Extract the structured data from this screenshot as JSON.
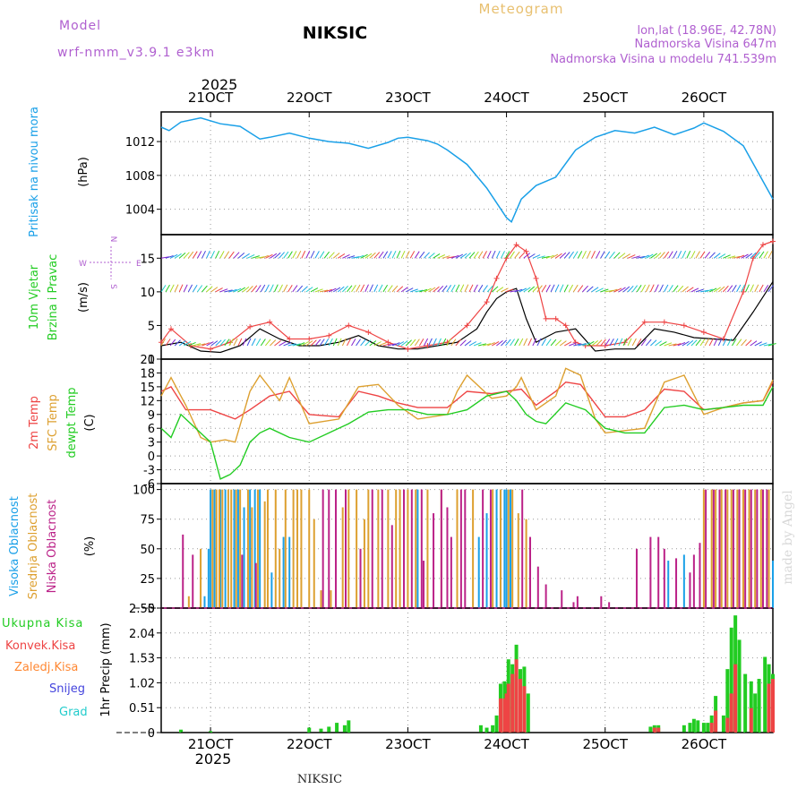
{
  "header": {
    "app_title": "Meteogram",
    "station": "NIKSIC",
    "model_label": "Model",
    "model_name": "wrf-nmm_v3.9.1  e3km",
    "lonlat": "lon,lat (18.96E, 42.78N)",
    "altitude": "Nadmorska Visina 647m",
    "model_altitude": "Nadmorska Visina u modelu 741.539m",
    "year": "2025",
    "footer_station": "NIKSIC",
    "watermark": "made by Angel"
  },
  "colors": {
    "pressure": "#1aa0e8",
    "wind": "#22cc22",
    "temp2m": "#ee4444",
    "sfc": "#dda030",
    "dew": "#22cc22",
    "high": "#1aa0e8",
    "mid": "#dda030",
    "low": "#bb2288",
    "total": "#22cc22",
    "conv": "#ee4444",
    "frz": "#ff8833",
    "snow": "#4444dd",
    "grad": "#22cccc",
    "compass": "#b060d0"
  },
  "chart_data": [
    {
      "id": "pressure",
      "type": "line",
      "ylabel_title": "Pritisak na nivou mora",
      "ylabel_unit": "(hPa)",
      "ylim": [
        1001,
        1015.5
      ],
      "yticks": [
        1004,
        1008,
        1012
      ],
      "x_day_start": 20.5,
      "x_day_end": 26.7,
      "xticks": [
        "21OCT",
        "22OCT",
        "23OCT",
        "24OCT",
        "25OCT",
        "26OCT"
      ],
      "series": [
        {
          "name": "MSLP",
          "x": [
            20.5,
            20.58,
            20.7,
            20.9,
            21.1,
            21.3,
            21.5,
            21.6,
            21.8,
            22.0,
            22.2,
            22.4,
            22.6,
            22.8,
            22.9,
            23.0,
            23.2,
            23.3,
            23.4,
            23.6,
            23.8,
            24.0,
            24.05,
            24.15,
            24.3,
            24.5,
            24.7,
            24.9,
            25.1,
            25.3,
            25.5,
            25.7,
            25.9,
            26.0,
            26.2,
            26.4,
            26.7
          ],
          "values": [
            1013.7,
            1013.3,
            1014.3,
            1014.8,
            1014.1,
            1013.8,
            1012.3,
            1012.5,
            1013.0,
            1012.4,
            1012.0,
            1011.8,
            1011.2,
            1011.9,
            1012.4,
            1012.5,
            1012.1,
            1011.7,
            1011.0,
            1009.3,
            1006.5,
            1003.0,
            1002.5,
            1005.2,
            1006.8,
            1007.8,
            1011.0,
            1012.5,
            1013.3,
            1013.0,
            1013.7,
            1012.8,
            1013.6,
            1014.2,
            1013.2,
            1011.5,
            1005.2
          ]
        }
      ]
    },
    {
      "id": "wind",
      "type": "line",
      "ylabel_title": "10m Vjetar",
      "ylabel_sub": "Brzina i Pravac",
      "ylabel_unit": "(m/s)",
      "ylim": [
        0,
        18.5
      ],
      "yticks": [
        0,
        5,
        10,
        15
      ],
      "compass": {
        "north": "N",
        "south": "S",
        "east": "E",
        "west": "W"
      },
      "series": [
        {
          "name": "Brzina",
          "x": [
            20.5,
            20.7,
            20.9,
            21.1,
            21.3,
            21.5,
            21.7,
            21.9,
            22.1,
            22.3,
            22.5,
            22.7,
            22.9,
            23.1,
            23.3,
            23.5,
            23.7,
            23.8,
            23.9,
            24.0,
            24.1,
            24.2,
            24.3,
            24.5,
            24.7,
            24.9,
            25.1,
            25.3,
            25.5,
            25.7,
            25.9,
            26.1,
            26.3,
            26.5,
            26.7
          ],
          "values": [
            2.0,
            2.5,
            1.2,
            1.0,
            2.0,
            4.5,
            3.0,
            2.0,
            2.0,
            2.5,
            3.5,
            2.0,
            1.5,
            1.5,
            2.0,
            2.5,
            4.5,
            7.0,
            9.0,
            10.0,
            10.5,
            6.0,
            2.5,
            4.0,
            4.5,
            1.2,
            1.5,
            1.5,
            4.5,
            4.0,
            3.2,
            3.0,
            2.8,
            7.0,
            11.5
          ]
        },
        {
          "name": "Udari",
          "x": [
            20.5,
            20.6,
            20.8,
            21.0,
            21.2,
            21.4,
            21.6,
            21.8,
            22.0,
            22.2,
            22.4,
            22.6,
            22.8,
            23.0,
            23.2,
            23.4,
            23.6,
            23.8,
            23.9,
            24.0,
            24.1,
            24.2,
            24.3,
            24.4,
            24.5,
            24.6,
            24.7,
            24.8,
            25.0,
            25.2,
            25.4,
            25.6,
            25.8,
            26.0,
            26.2,
            26.4,
            26.5,
            26.6,
            26.7
          ],
          "values": [
            2.5,
            4.5,
            2.0,
            1.5,
            2.5,
            4.8,
            5.5,
            3.0,
            3.0,
            3.5,
            5.0,
            4.0,
            2.5,
            1.5,
            2.0,
            2.5,
            5.0,
            8.5,
            12.0,
            15.0,
            17.0,
            16.0,
            12.0,
            6.0,
            6.0,
            5.0,
            2.5,
            2.0,
            2.0,
            2.5,
            5.5,
            5.5,
            5.0,
            4.0,
            3.0,
            10.0,
            15.0,
            17.0,
            17.5
          ]
        }
      ]
    },
    {
      "id": "temperature",
      "type": "line",
      "ylabel_title": "2m Temp",
      "ylabel_sub": "SFC Temp",
      "ylabel_sub2": "dewpt Temp",
      "ylabel_unit": "(C)",
      "ylim": [
        -6,
        21
      ],
      "yticks": [
        -6,
        -3,
        0,
        3,
        6,
        9,
        12,
        15,
        18,
        21
      ],
      "series": [
        {
          "name": "2m Temp",
          "x": [
            20.5,
            20.6,
            20.75,
            21.0,
            21.25,
            21.4,
            21.6,
            21.8,
            22.0,
            22.3,
            22.5,
            22.7,
            22.9,
            23.1,
            23.4,
            23.6,
            23.85,
            24.0,
            24.15,
            24.3,
            24.5,
            24.6,
            24.75,
            25.0,
            25.2,
            25.4,
            25.6,
            25.8,
            26.0,
            26.2,
            26.4,
            26.6,
            26.7
          ],
          "values": [
            14.0,
            15.0,
            10.0,
            10.0,
            8.0,
            10.0,
            13.0,
            14.0,
            9.0,
            8.5,
            14.0,
            13.0,
            11.5,
            10.5,
            10.5,
            14.0,
            13.5,
            14.0,
            14.5,
            11.0,
            14.0,
            16.0,
            15.5,
            8.5,
            8.5,
            10.0,
            14.5,
            14.0,
            10.0,
            10.5,
            11.5,
            12.0,
            16.0
          ]
        },
        {
          "name": "SFC Temp",
          "x": [
            20.5,
            20.6,
            20.75,
            20.9,
            21.0,
            21.15,
            21.25,
            21.4,
            21.5,
            21.7,
            21.8,
            22.0,
            22.3,
            22.5,
            22.7,
            22.9,
            23.1,
            23.4,
            23.5,
            23.6,
            23.85,
            24.0,
            24.1,
            24.15,
            24.3,
            24.5,
            24.6,
            24.75,
            24.9,
            25.0,
            25.2,
            25.4,
            25.6,
            25.8,
            26.0,
            26.2,
            26.4,
            26.6,
            26.7
          ],
          "values": [
            13.0,
            17.0,
            11.0,
            4.0,
            3.0,
            3.5,
            3.0,
            14.0,
            17.5,
            12.0,
            17.0,
            7.0,
            8.0,
            15.0,
            15.5,
            11.0,
            8.0,
            9.0,
            14.0,
            17.5,
            12.5,
            13.0,
            15.0,
            17.0,
            10.0,
            13.0,
            19.0,
            17.5,
            8.0,
            5.0,
            5.5,
            6.0,
            16.0,
            17.5,
            9.0,
            10.5,
            11.5,
            12.0,
            16.5
          ]
        },
        {
          "name": "dewpt Temp",
          "x": [
            20.5,
            20.6,
            20.7,
            20.8,
            21.0,
            21.1,
            21.2,
            21.3,
            21.4,
            21.5,
            21.6,
            21.8,
            22.0,
            22.2,
            22.4,
            22.6,
            22.8,
            23.0,
            23.2,
            23.4,
            23.6,
            23.8,
            24.0,
            24.1,
            24.2,
            24.3,
            24.4,
            24.6,
            24.8,
            25.0,
            25.2,
            25.4,
            25.6,
            25.8,
            26.0,
            26.2,
            26.4,
            26.6,
            26.7
          ],
          "values": [
            6.0,
            4.0,
            9.0,
            7.0,
            3.0,
            -5.0,
            -4.0,
            -2.0,
            3.0,
            5.0,
            6.0,
            4.0,
            3.0,
            5.0,
            7.0,
            9.5,
            10.0,
            10.0,
            9.0,
            9.0,
            10.0,
            13.0,
            14.0,
            12.0,
            9.0,
            7.5,
            7.0,
            11.5,
            10.0,
            6.0,
            5.0,
            5.0,
            10.5,
            11.0,
            10.0,
            10.5,
            11.0,
            11.0,
            15.0
          ]
        }
      ]
    },
    {
      "id": "clouds",
      "type": "bar",
      "ylabel_title": "Visoka Oblacnost",
      "ylabel_sub": "Srednja Oblacnost",
      "ylabel_sub2": "Niska  Oblacnost",
      "ylabel_unit": "(%)",
      "ylim": [
        0,
        105
      ],
      "yticks": [
        0,
        25,
        50,
        75,
        100
      ],
      "series": [
        {
          "name": "Visoka",
          "x": [
            20.94,
            20.98,
            21.0,
            21.04,
            21.1,
            21.15,
            21.24,
            21.28,
            21.34,
            21.4,
            21.45,
            21.5,
            21.62,
            21.74,
            21.8,
            23.1,
            23.72,
            23.8,
            23.9,
            23.94,
            23.98,
            24.0,
            24.04,
            25.64,
            25.8,
            26.7
          ],
          "values": [
            10,
            50,
            100,
            100,
            100,
            100,
            100,
            100,
            85,
            100,
            100,
            100,
            30,
            60,
            60,
            100,
            60,
            80,
            100,
            100,
            100,
            100,
            100,
            40,
            45,
            40
          ]
        },
        {
          "name": "Srednja",
          "x": [
            20.78,
            20.9,
            21.02,
            21.06,
            21.09,
            21.12,
            21.18,
            21.21,
            21.26,
            21.3,
            21.38,
            21.42,
            21.48,
            21.55,
            21.58,
            21.66,
            21.7,
            21.76,
            21.84,
            21.88,
            21.92,
            22.0,
            22.05,
            22.12,
            22.22,
            22.34,
            22.4,
            22.48,
            22.56,
            22.6,
            22.7,
            22.8,
            22.88,
            22.92,
            23.0,
            23.08,
            23.2,
            23.34,
            23.5,
            23.66,
            23.86,
            23.94,
            24.02,
            24.06,
            24.12,
            24.2,
            26.0,
            26.08,
            26.12,
            26.18,
            26.24,
            26.28,
            26.34,
            26.4,
            26.46,
            26.52,
            26.58,
            26.66
          ],
          "values": [
            10,
            50,
            100,
            100,
            100,
            100,
            100,
            100,
            100,
            100,
            100,
            85,
            100,
            90,
            100,
            100,
            50,
            100,
            100,
            100,
            100,
            100,
            75,
            15,
            15,
            85,
            100,
            100,
            75,
            100,
            100,
            100,
            100,
            100,
            100,
            100,
            100,
            100,
            100,
            100,
            100,
            100,
            100,
            100,
            80,
            75,
            100,
            100,
            100,
            100,
            100,
            100,
            100,
            100,
            100,
            100,
            100,
            100
          ]
        },
        {
          "name": "Niska",
          "x": [
            20.72,
            20.82,
            21.32,
            21.46,
            22.14,
            22.2,
            22.27,
            22.37,
            22.52,
            22.64,
            22.74,
            22.84,
            22.96,
            23.04,
            23.14,
            23.16,
            23.26,
            23.34,
            23.4,
            23.44,
            23.54,
            23.58,
            23.76,
            23.84,
            24.16,
            24.24,
            24.32,
            24.4,
            24.56,
            24.68,
            24.72,
            24.96,
            25.04,
            25.32,
            25.46,
            25.54,
            25.6,
            25.72,
            25.86,
            25.9,
            25.96,
            26.02,
            26.1,
            26.16,
            26.22,
            26.3,
            26.36,
            26.42,
            26.48,
            26.54,
            26.6,
            26.64
          ],
          "values": [
            62,
            45,
            45,
            38,
            100,
            100,
            100,
            100,
            50,
            100,
            100,
            70,
            100,
            100,
            100,
            40,
            80,
            100,
            85,
            60,
            100,
            100,
            100,
            100,
            100,
            60,
            35,
            20,
            15,
            5,
            10,
            10,
            5,
            50,
            60,
            60,
            50,
            42,
            30,
            45,
            55,
            100,
            100,
            100,
            100,
            100,
            100,
            100,
            100,
            100,
            100,
            100
          ]
        }
      ]
    },
    {
      "id": "precip",
      "type": "bar",
      "ylabel_unit": "1hr Precip (mm)",
      "ylim": [
        0,
        2.55
      ],
      "yticks": [
        0,
        0.51,
        1.02,
        1.53,
        2.04,
        2.55
      ],
      "legend": [
        "Ukupna  Kisa",
        "Konvek.Kisa",
        "Zaledj.Kisa",
        "Snijeg",
        "Grad"
      ],
      "series": [
        {
          "name": "Ukupna Kisa",
          "x": [
            20.7,
            21.0,
            22.0,
            22.12,
            22.2,
            22.28,
            22.36,
            22.4,
            23.74,
            23.8,
            23.86,
            23.9,
            23.94,
            23.98,
            24.0,
            24.02,
            24.06,
            24.1,
            24.14,
            24.18,
            24.22,
            25.46,
            25.5,
            25.54,
            25.8,
            25.86,
            25.9,
            25.94,
            26.0,
            26.04,
            26.08,
            26.12,
            26.2,
            26.24,
            26.28,
            26.32,
            26.36,
            26.42,
            26.48,
            26.52,
            26.56,
            26.62,
            26.66,
            26.7
          ],
          "values": [
            0.06,
            0.03,
            0.1,
            0.08,
            0.12,
            0.2,
            0.15,
            0.25,
            0.15,
            0.1,
            0.15,
            0.35,
            1.0,
            1.05,
            1.0,
            1.5,
            1.4,
            1.8,
            1.3,
            1.35,
            0.8,
            0.12,
            0.15,
            0.15,
            0.15,
            0.2,
            0.28,
            0.25,
            0.2,
            0.2,
            0.35,
            0.75,
            0.35,
            1.3,
            2.15,
            2.4,
            1.9,
            1.2,
            1.05,
            0.8,
            1.1,
            1.55,
            1.4,
            1.2
          ]
        },
        {
          "name": "Konvek.Kisa",
          "x": [
            23.94,
            23.98,
            24.0,
            24.02,
            24.06,
            24.1,
            24.14,
            24.18,
            25.5,
            25.54,
            26.08,
            26.12,
            26.24,
            26.28,
            26.32,
            26.48,
            26.66,
            26.7
          ],
          "values": [
            0.7,
            0.7,
            0.8,
            1.0,
            1.2,
            1.5,
            1.1,
            0.95,
            0.1,
            0.1,
            0.2,
            0.45,
            0.3,
            0.8,
            1.4,
            0.5,
            1.0,
            1.1
          ]
        }
      ]
    }
  ]
}
